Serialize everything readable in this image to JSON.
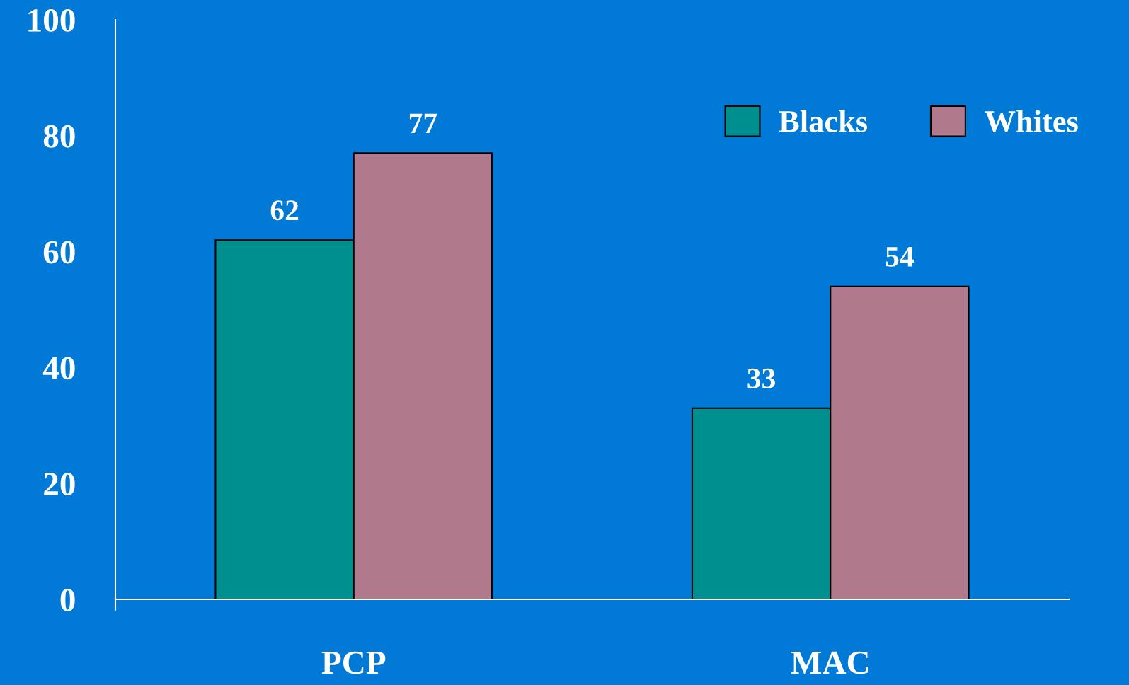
{
  "chart_data": {
    "type": "bar",
    "categories": [
      "PCP",
      "MAC"
    ],
    "series": [
      {
        "name": "Blacks",
        "color": "#008f8f",
        "values": [
          62,
          33
        ]
      },
      {
        "name": "Whites",
        "color": "#b07a8c",
        "values": [
          77,
          54
        ]
      }
    ],
    "ylim": [
      0,
      100
    ],
    "yticks": [
      0,
      20,
      40,
      60,
      80,
      100
    ],
    "data_labels": true,
    "legend": "top right",
    "grid": false
  }
}
